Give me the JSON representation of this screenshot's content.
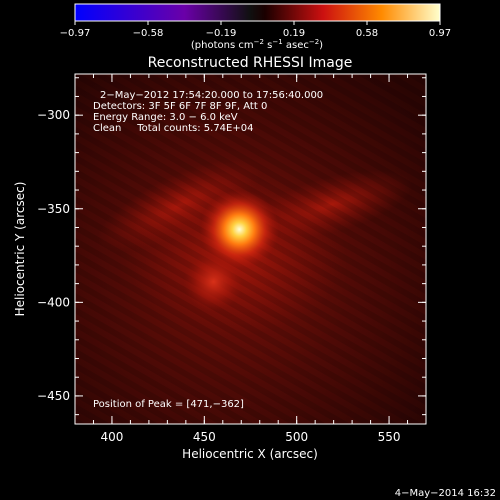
{
  "colorbar": {
    "tick_labels": [
      "−0.97",
      "−0.58",
      "−0.19",
      "0.19",
      "0.58",
      "0.97"
    ],
    "unit_prefix": "(photons cm",
    "unit_exp1": "−2",
    "unit_mid1": " s",
    "unit_exp2": "−1",
    "unit_mid2": " asec",
    "unit_exp3": "−2",
    "unit_suffix": ")"
  },
  "plot": {
    "title": "Reconstructed RHESSI Image",
    "xlabel": "Heliocentric X (arcsec)",
    "ylabel": "Heliocentric Y (arcsec)",
    "x_ticks": [
      "400",
      "450",
      "500",
      "550"
    ],
    "y_ticks": [
      "−300",
      "−350",
      "−400",
      "−450"
    ],
    "xlim": [
      380,
      570
    ],
    "ylim": [
      -465,
      -278
    ],
    "annotations": {
      "time_range": "2−May−2012 17:54:20.000 to 17:56:40.000",
      "detectors": "Detectors: 3F 5F 6F 7F 8F 9F, Att 0",
      "energy": "Energy Range: 3.0 − 6.0 keV",
      "clean": "Clean     Total counts: 5.74E+04",
      "peak": "Position of Peak = [471,−362]"
    }
  },
  "image_data": {
    "sources": [
      {
        "x": 469,
        "y": -361,
        "intensity": 1.0
      },
      {
        "x": 455,
        "y": -389,
        "intensity": 0.45
      }
    ],
    "peak_position": [
      471,
      -362
    ]
  },
  "footer": {
    "date": "4−May−2014 16:32"
  }
}
